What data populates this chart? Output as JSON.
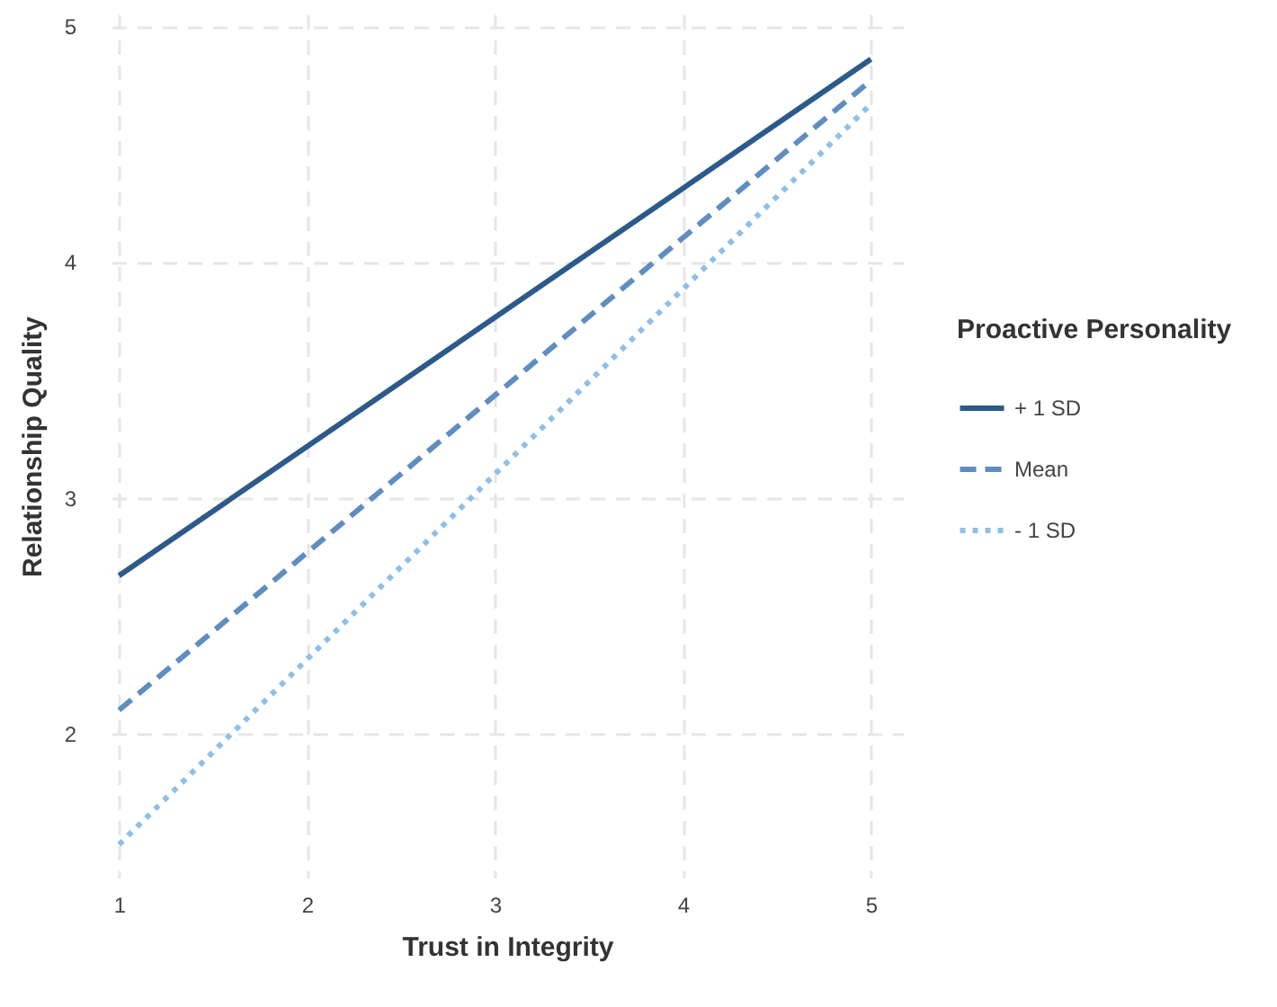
{
  "chart_data": {
    "type": "line",
    "xlabel": "Trust in Integrity",
    "ylabel": "Relationship Quality",
    "legend_title": "Proactive Personality",
    "legend": "right",
    "grid": true,
    "x": [
      1,
      5
    ],
    "xlim": [
      0.96,
      5.17
    ],
    "ylim": [
      1.39,
      5.05
    ],
    "xticks": [
      1,
      2,
      3,
      4,
      5
    ],
    "yticks": [
      2,
      3,
      4,
      5
    ],
    "series": [
      {
        "name": "+ 1 SD",
        "color": "#2c5a8a",
        "line_style": "solid",
        "values": [
          2.67,
          4.86
        ]
      },
      {
        "name": "Mean",
        "color": "#5f8dbf",
        "line_style": "dashed",
        "values": [
          2.1,
          4.77
        ]
      },
      {
        "name": "- 1 SD",
        "color": "#8fbfe6",
        "line_style": "dotted",
        "values": [
          1.53,
          4.67
        ]
      }
    ]
  }
}
